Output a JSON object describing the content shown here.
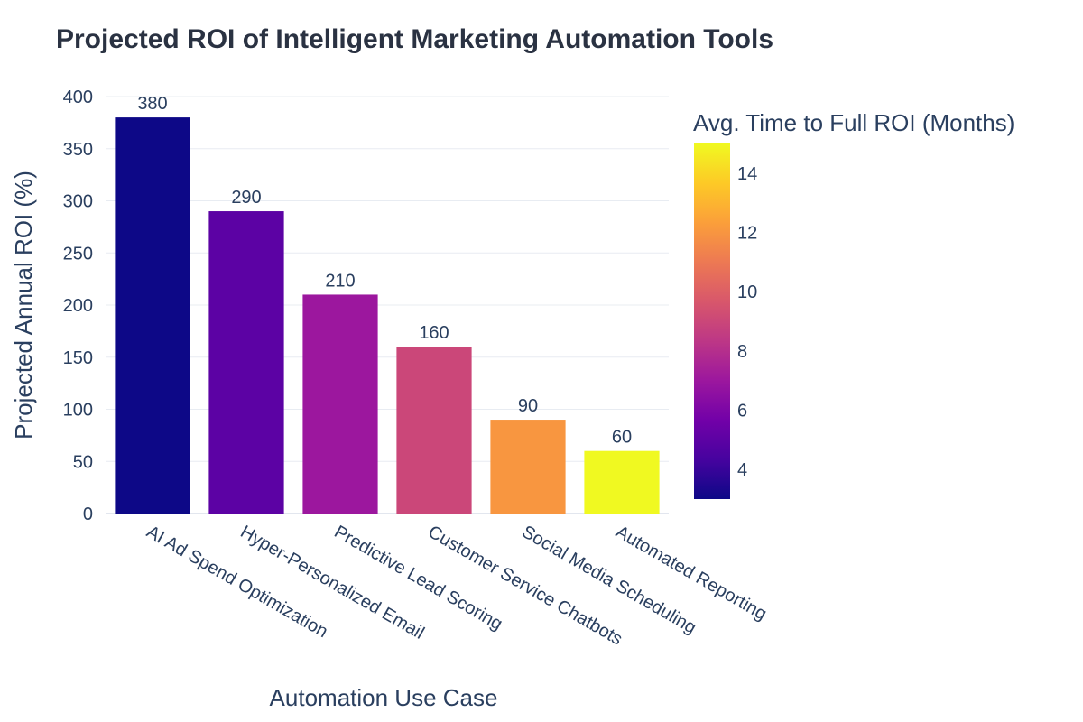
{
  "chart_data": {
    "type": "bar",
    "title": "Projected ROI of Intelligent Marketing Automation Tools",
    "xlabel": "Automation Use Case",
    "ylabel": "Projected Annual ROI (%)",
    "categories": [
      "AI Ad Spend Optimization",
      "Hyper-Personalized Email",
      "Predictive Lead Scoring",
      "Customer Service Chatbots",
      "Social Media Scheduling",
      "Automated Reporting"
    ],
    "values": [
      380,
      290,
      210,
      160,
      90,
      60
    ],
    "data_labels": [
      "380",
      "290",
      "210",
      "160",
      "90",
      "60"
    ],
    "color_values": [
      3,
      5,
      7,
      9,
      12,
      15
    ],
    "ylim": [
      0,
      400
    ],
    "yticks": [
      "0",
      "50",
      "100",
      "150",
      "200",
      "250",
      "300",
      "350",
      "400"
    ],
    "grid": true,
    "colorbar": {
      "title": "Avg. Time to Full ROI (Months)",
      "range": [
        3,
        15
      ],
      "ticks": [
        "4",
        "6",
        "8",
        "10",
        "12",
        "14"
      ],
      "colorscale": "plasma",
      "colors": [
        "#0d0887",
        "#46039f",
        "#7201a8",
        "#9c179e",
        "#bd3786",
        "#d8576b",
        "#ed7953",
        "#fb9f3a",
        "#fdca26",
        "#f0f921"
      ]
    }
  }
}
